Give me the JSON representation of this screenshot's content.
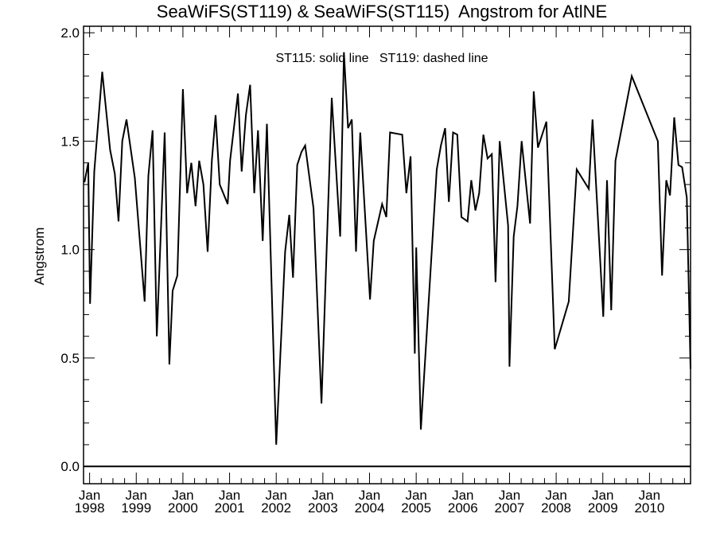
{
  "chart_data": {
    "type": "line",
    "title": "SeaWiFS(ST119) & SeaWiFS(ST115)  Angstrom for AtlNE",
    "annotation": "ST115: solid line   ST119: dashed line",
    "xlabel": "",
    "ylabel": "Angstrom",
    "xlim": [
      1997.87,
      2010.88
    ],
    "ylim": [
      -0.08,
      2.03
    ],
    "grid": false,
    "y_ticks": [
      0.0,
      0.5,
      1.0,
      1.5,
      2.0
    ],
    "y_tick_labels": [
      "0.0",
      "0.5",
      "1.0",
      "1.5",
      "2.0"
    ],
    "x_ticks": [
      1998,
      1999,
      2000,
      2001,
      2002,
      2003,
      2004,
      2005,
      2006,
      2007,
      2008,
      2009,
      2010
    ],
    "x_tick_labels": [
      {
        "month": "Jan",
        "year": "1998"
      },
      {
        "month": "Jan",
        "year": "1999"
      },
      {
        "month": "Jan",
        "year": "2000"
      },
      {
        "month": "Jan",
        "year": "2001"
      },
      {
        "month": "Jan",
        "year": "2002"
      },
      {
        "month": "Jan",
        "year": "2003"
      },
      {
        "month": "Jan",
        "year": "2004"
      },
      {
        "month": "Jan",
        "year": "2005"
      },
      {
        "month": "Jan",
        "year": "2006"
      },
      {
        "month": "Jan",
        "year": "2007"
      },
      {
        "month": "Jan",
        "year": "2008"
      },
      {
        "month": "Jan",
        "year": "2009"
      },
      {
        "month": "Jan",
        "year": "2010"
      }
    ],
    "reference_line": 0.0,
    "series": [
      {
        "name": "ST115",
        "style": "solid",
        "color": "#000000",
        "x": [
          1997.89,
          1997.97,
          1998.01,
          1998.1,
          1998.27,
          1998.44,
          1998.54,
          1998.62,
          1998.7,
          1998.79,
          1998.97,
          1999.18,
          1999.26,
          1999.35,
          1999.44,
          1999.61,
          1999.71,
          1999.78,
          1999.88,
          2000.0,
          2000.09,
          2000.18,
          2000.27,
          2000.35,
          2000.44,
          2000.53,
          2000.62,
          2000.7,
          2000.79,
          2000.96,
          2001.01,
          2001.18,
          2001.26,
          2001.35,
          2001.44,
          2001.53,
          2001.61,
          2001.71,
          2001.8,
          2002.0,
          2002.19,
          2002.28,
          2002.36,
          2002.45,
          2002.54,
          2002.62,
          2002.8,
          2002.97,
          2003.19,
          2003.37,
          2003.45,
          2003.54,
          2003.62,
          2003.71,
          2003.8,
          2004.01,
          2004.09,
          2004.27,
          2004.36,
          2004.44,
          2004.7,
          2004.79,
          2004.88,
          2004.97,
          2005.0,
          2005.1,
          2005.44,
          2005.53,
          2005.62,
          2005.7,
          2005.79,
          2005.88,
          2005.97,
          2006.1,
          2006.18,
          2006.27,
          2006.35,
          2006.44,
          2006.53,
          2006.62,
          2006.7,
          2006.79,
          2006.97,
          2007.0,
          2007.09,
          2007.17,
          2007.26,
          2007.44,
          2007.52,
          2007.61,
          2007.79,
          2007.97,
          2008.27,
          2008.44,
          2008.7,
          2008.78,
          2009.01,
          2009.09,
          2009.18,
          2009.27,
          2009.62,
          2010.18,
          2010.27,
          2010.36,
          2010.44,
          2010.53,
          2010.62,
          2010.7,
          2010.8,
          2010.88
        ],
        "values": [
          1.31,
          1.4,
          0.75,
          1.36,
          1.82,
          1.46,
          1.35,
          1.13,
          1.5,
          1.6,
          1.33,
          0.76,
          1.34,
          1.55,
          0.6,
          1.54,
          0.47,
          0.81,
          0.88,
          1.74,
          1.26,
          1.4,
          1.2,
          1.41,
          1.3,
          0.99,
          1.41,
          1.62,
          1.3,
          1.21,
          1.41,
          1.72,
          1.36,
          1.62,
          1.76,
          1.26,
          1.55,
          1.04,
          1.58,
          0.1,
          0.99,
          1.16,
          0.87,
          1.39,
          1.45,
          1.48,
          1.19,
          0.29,
          1.7,
          1.06,
          1.91,
          1.56,
          1.6,
          0.99,
          1.54,
          0.77,
          1.04,
          1.21,
          1.15,
          1.54,
          1.53,
          1.26,
          1.43,
          0.52,
          1.01,
          0.17,
          1.37,
          1.48,
          1.56,
          1.22,
          1.54,
          1.53,
          1.15,
          1.13,
          1.32,
          1.18,
          1.26,
          1.53,
          1.42,
          1.44,
          0.85,
          1.5,
          1.11,
          0.46,
          1.06,
          1.2,
          1.5,
          1.12,
          1.73,
          1.47,
          1.59,
          0.54,
          0.76,
          1.37,
          1.28,
          1.6,
          0.69,
          1.32,
          0.72,
          1.41,
          1.8,
          1.5,
          0.88,
          1.32,
          1.25,
          1.61,
          1.39,
          1.38,
          1.24,
          0.45
        ]
      }
    ]
  }
}
